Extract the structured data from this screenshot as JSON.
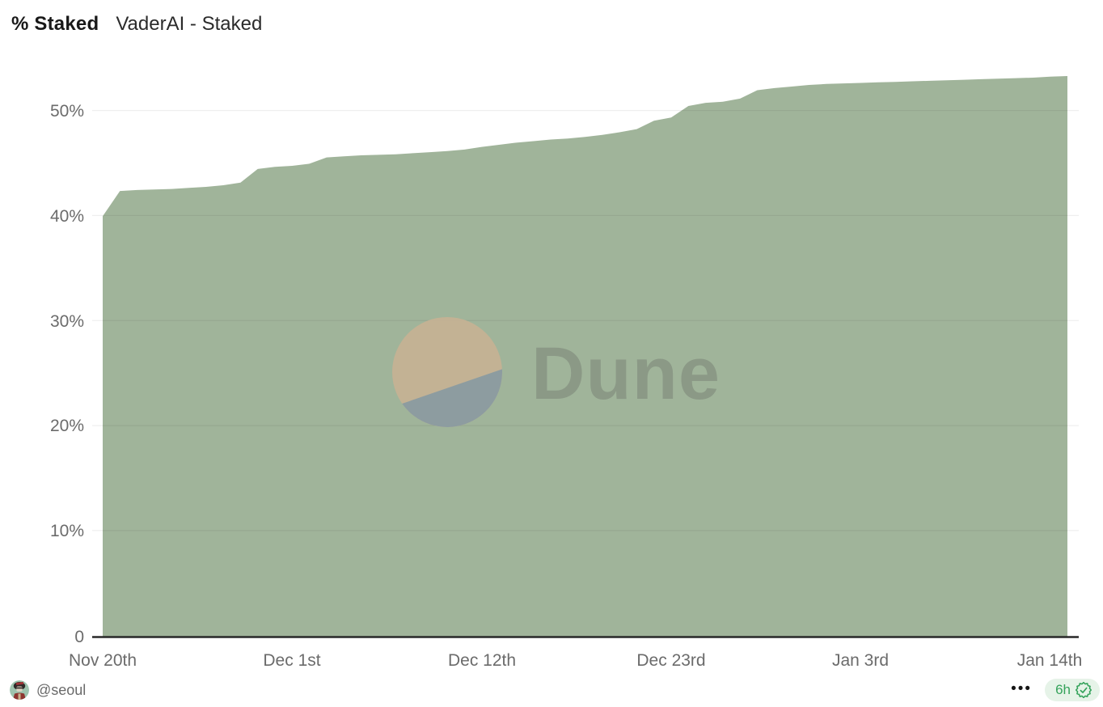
{
  "header": {
    "metric_label": "% Staked",
    "title": "VaderAI - Staked"
  },
  "watermark": {
    "brand": "Dune"
  },
  "footer": {
    "author_handle": "@seoul",
    "menu_dots": "•••",
    "badge_label": "6h",
    "badge_icon": "verified-seal-check",
    "accent_green": "#35a35b",
    "badge_bg": "#e6f3e8"
  },
  "colors": {
    "area_fill": "#a0b49a",
    "axis_text": "#6b6b6b",
    "baseline": "#282828",
    "watermark_circle_top": "#c5b294",
    "watermark_circle_bottom": "#8c9ba1"
  },
  "chart_data": {
    "type": "area",
    "title": "VaderAI - Staked",
    "metric": "% Staked",
    "cadence": "daily starting Nov 20th",
    "xticks": [
      "Nov 20th",
      "Dec 1st",
      "Dec 12th",
      "Dec 23rd",
      "Jan 3rd",
      "Jan 14th"
    ],
    "xtick_day_indices": [
      0,
      11,
      22,
      33,
      44,
      55
    ],
    "yticks": [
      "50%",
      "40%",
      "30%",
      "20%",
      "10%",
      "0"
    ],
    "ytick_values": [
      50,
      40,
      30,
      20,
      10,
      0
    ],
    "ylim": [
      0,
      55
    ],
    "grid": "horizontal",
    "legend": "none",
    "area_color": "#a0b49a",
    "series": [
      {
        "name": "% Staked",
        "values": [
          40.0,
          42.4,
          42.5,
          42.55,
          42.6,
          42.7,
          42.8,
          42.95,
          43.2,
          44.5,
          44.7,
          44.8,
          45.0,
          45.6,
          45.7,
          45.8,
          45.85,
          45.9,
          46.0,
          46.1,
          46.2,
          46.35,
          46.6,
          46.8,
          47.0,
          47.15,
          47.3,
          47.4,
          47.55,
          47.75,
          48.0,
          48.3,
          49.1,
          49.4,
          50.5,
          50.8,
          50.9,
          51.2,
          52.0,
          52.2,
          52.35,
          52.5,
          52.6,
          52.65,
          52.7,
          52.75,
          52.8,
          52.85,
          52.9,
          52.95,
          53.0,
          53.05,
          53.1,
          53.15,
          53.2,
          53.3,
          53.35
        ]
      }
    ]
  }
}
